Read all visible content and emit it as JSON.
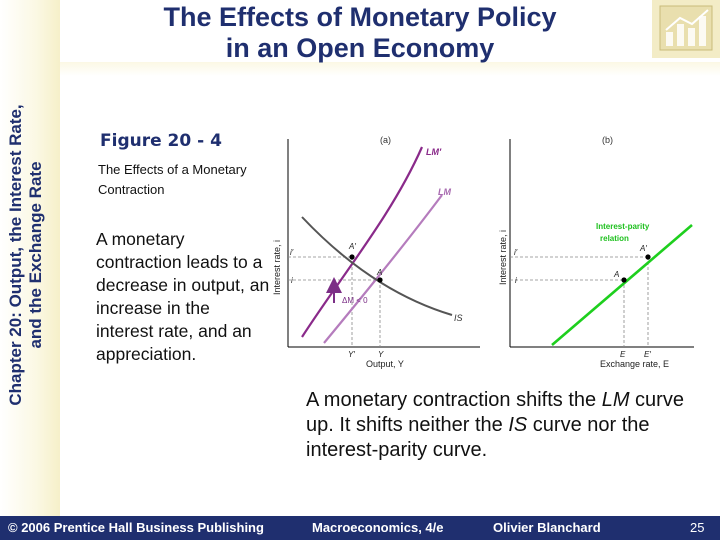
{
  "slide": {
    "title_line1": "The Effects of Monetary Policy",
    "title_line2": "in an Open Economy",
    "side_title_line1": "Chapter 20: Output, the Interest Rate,",
    "side_title_line2": "and the Exchange Rate"
  },
  "figure": {
    "number": "Figure 20 - 4",
    "subtitle": "The Effects of a Monetary Contraction",
    "description": "A monetary contraction leads to a decrease in output, an increase in the interest rate, and an appreciation."
  },
  "diagram": {
    "panel_a": {
      "tag": "(a)",
      "y_axis": "Interest rate, i",
      "x_axis": "Output, Y",
      "curve_lm_prime": "LM′",
      "curve_lm": "LM",
      "curve_is": "IS",
      "shift_label": "ΔM < 0",
      "point_a_prime": "A′",
      "point_a": "A",
      "tick_i_prime": "i′",
      "tick_i": "i",
      "tick_y_prime": "Y′",
      "tick_y": "Y"
    },
    "panel_b": {
      "tag": "(b)",
      "y_axis": "Interest rate, i",
      "x_axis": "Exchange rate, E",
      "curve_label_line1": "Interest-parity",
      "curve_label_line2": "relation",
      "point_a_prime": "A′",
      "point_a": "A",
      "tick_i_prime": "i′",
      "tick_i": "i",
      "tick_e": "E",
      "tick_e_prime": "E′"
    },
    "colors": {
      "lm_prime": "#8a2a8a",
      "lm": "#a86bb0",
      "is": "#5a5a5a",
      "interest_parity": "#1ecf1e",
      "shift_arrow": "#7b2f86"
    }
  },
  "caption": {
    "part1": "A monetary contraction shifts the ",
    "lm": "LM",
    "part2": " curve up. It shifts neither the ",
    "is": "IS",
    "part3": " curve nor the interest-parity curve."
  },
  "footer": {
    "copyright": "© 2006 Prentice Hall Business Publishing",
    "book": "Macroeconomics, 4/e",
    "author": "Olivier Blanchard",
    "page": "25"
  }
}
